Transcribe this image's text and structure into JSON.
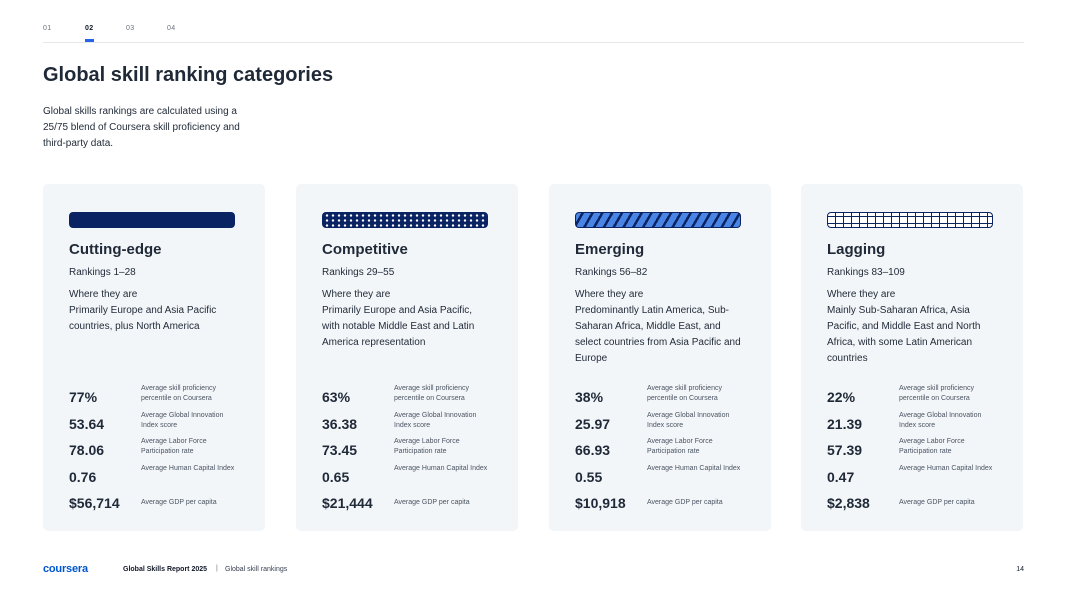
{
  "tabs": [
    "01",
    "02",
    "03",
    "04"
  ],
  "active_tab": "02",
  "title": "Global skill ranking categories",
  "intro": "Global skills rankings are calculated using a 25/75 blend of Coursera skill proficiency and third-party data.",
  "where_label": "Where they are",
  "stat_labels": [
    "Average skill proficiency percentile on Coursera",
    "Average Global Innovation Index score",
    "Average Labor Force Participation rate",
    "Average Human Capital Index",
    "Average GDP per capita"
  ],
  "cards": [
    {
      "title": "Cutting-edge",
      "rank": "Rankings 1–28",
      "pattern": "solid",
      "where": "Primarily Europe and Asia Pacific countries, plus North America",
      "stats": [
        "77%",
        "53.64",
        "78.06",
        "0.76",
        "$56,714"
      ]
    },
    {
      "title": "Competitive",
      "rank": "Rankings 29–55",
      "pattern": "dots",
      "where": "Primarily Europe and Asia Pacific, with notable Middle East and Latin America representation",
      "stats": [
        "63%",
        "36.38",
        "73.45",
        "0.65",
        "$21,444"
      ]
    },
    {
      "title": "Emerging",
      "rank": "Rankings 56–82",
      "pattern": "stripes",
      "where": "Predominantly Latin America, Sub-Saharan Africa, Middle East, and select countries from Asia Pacific and Europe",
      "stats": [
        "38%",
        "25.97",
        "66.93",
        "0.55",
        "$10,918"
      ]
    },
    {
      "title": "Lagging",
      "rank": "Rankings 83–109",
      "pattern": "grid",
      "where": "Mainly Sub-Saharan Africa, Asia Pacific, and Middle East and North Africa, with some Latin American countries",
      "stats": [
        "22%",
        "21.39",
        "57.39",
        "0.47",
        "$2,838"
      ]
    }
  ],
  "footer": {
    "logo": "coursera",
    "report": "Global Skills Report 2025",
    "separator": "|",
    "section": "Global skill rankings",
    "page": "14"
  },
  "colors": {
    "navy": "#0a2463",
    "accent_blue": "#4a84e4",
    "card_bg": "#f3f6f9",
    "brand": "#0056d2"
  }
}
